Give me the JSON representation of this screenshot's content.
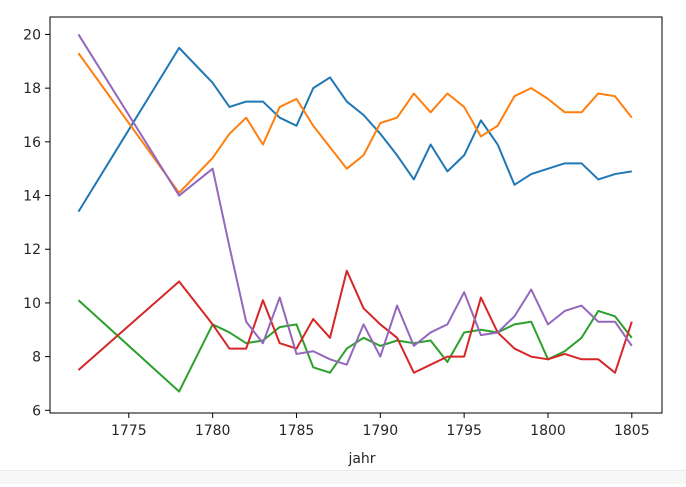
{
  "chart_data": {
    "type": "line",
    "xlabel": "jahr",
    "ylabel": "",
    "xlim": [
      1770.3,
      1806.8
    ],
    "ylim": [
      5.9,
      20.65
    ],
    "xticks": [
      1775,
      1780,
      1785,
      1790,
      1795,
      1800,
      1805
    ],
    "yticks": [
      6,
      8,
      10,
      12,
      14,
      16,
      18,
      20
    ],
    "grid": false,
    "x": [
      1772,
      1778,
      1780,
      1781,
      1782,
      1783,
      1784,
      1785,
      1786,
      1787,
      1788,
      1789,
      1790,
      1791,
      1792,
      1793,
      1794,
      1795,
      1796,
      1797,
      1798,
      1799,
      1800,
      1801,
      1802,
      1803,
      1804,
      1805
    ],
    "series": [
      {
        "color": "#1f77b4",
        "values": [
          13.4,
          19.5,
          18.2,
          17.3,
          17.5,
          17.5,
          16.9,
          16.6,
          18.0,
          18.4,
          17.5,
          17.0,
          16.3,
          15.5,
          14.6,
          15.9,
          14.9,
          15.5,
          16.8,
          15.9,
          14.4,
          14.8,
          15.0,
          15.2,
          15.2,
          14.6,
          14.8,
          14.9
        ]
      },
      {
        "color": "#ff7f0e",
        "values": [
          19.3,
          14.1,
          15.4,
          16.3,
          16.9,
          15.9,
          17.3,
          17.6,
          16.6,
          15.8,
          15.0,
          15.5,
          16.7,
          16.9,
          17.8,
          17.1,
          17.8,
          17.3,
          16.2,
          16.6,
          17.7,
          18.0,
          17.6,
          17.1,
          17.1,
          17.8,
          17.7,
          16.9
        ]
      },
      {
        "color": "#2ca02c",
        "values": [
          10.1,
          6.7,
          9.2,
          8.9,
          8.5,
          8.6,
          9.1,
          9.2,
          7.6,
          7.4,
          8.3,
          8.7,
          8.4,
          8.6,
          8.5,
          8.6,
          7.8,
          8.9,
          9.0,
          8.9,
          9.2,
          9.3,
          7.9,
          8.2,
          8.7,
          9.7,
          9.5,
          8.7
        ]
      },
      {
        "color": "#d62728",
        "values": [
          7.5,
          10.8,
          9.2,
          8.3,
          8.3,
          10.1,
          8.5,
          8.3,
          9.4,
          8.7,
          11.2,
          9.8,
          9.2,
          8.7,
          7.4,
          7.7,
          8.0,
          8.0,
          10.2,
          8.9,
          8.3,
          8.0,
          7.9,
          8.1,
          7.9,
          7.9,
          7.4,
          9.3
        ]
      },
      {
        "color": "#9467bd",
        "values": [
          20.0,
          14.0,
          15.0,
          12.1,
          9.3,
          8.5,
          10.2,
          8.1,
          8.2,
          7.9,
          7.7,
          9.2,
          8.0,
          9.9,
          8.4,
          8.9,
          9.2,
          10.4,
          8.8,
          8.9,
          9.5,
          10.5,
          9.2,
          9.7,
          9.9,
          9.3,
          9.3,
          8.4
        ]
      }
    ]
  }
}
